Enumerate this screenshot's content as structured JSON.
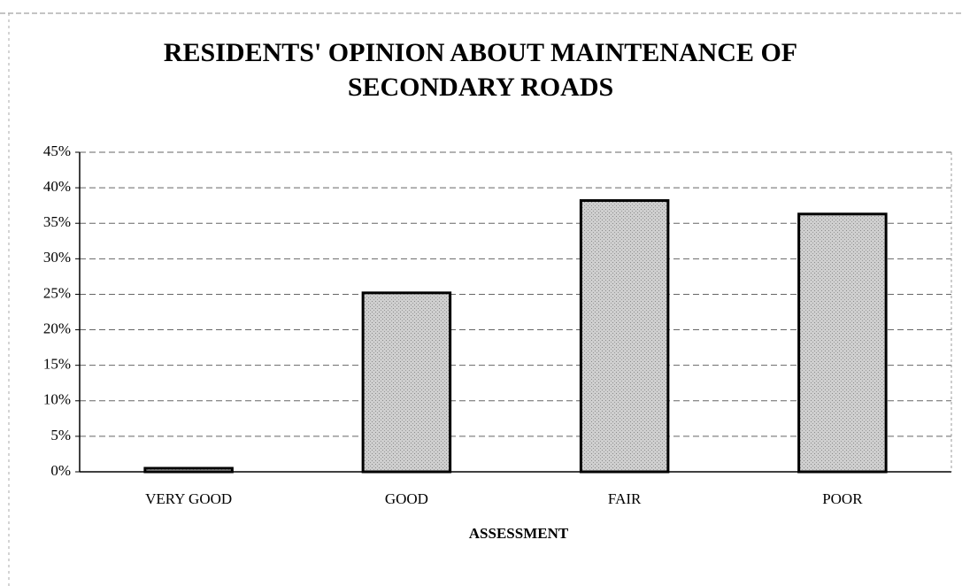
{
  "chart_data": {
    "type": "bar",
    "title": "RESIDENTS' OPINION ABOUT MAINTENANCE OF SECONDARY ROADS",
    "x_label": "ASSESSMENT",
    "categories": [
      "VERY GOOD",
      "GOOD",
      "FAIR",
      "POOR"
    ],
    "values": [
      0.5,
      25.2,
      38.2,
      36.3
    ],
    "color": "#c4c4c4",
    "ylim": [
      0,
      45
    ],
    "yticks": [
      {
        "value": 0,
        "label": "0%"
      },
      {
        "value": 5,
        "label": "5%"
      },
      {
        "value": 10,
        "label": "10%"
      },
      {
        "value": 15,
        "label": "15%"
      },
      {
        "value": 20,
        "label": "20%"
      },
      {
        "value": 25,
        "label": "25%"
      },
      {
        "value": 30,
        "label": "30%"
      },
      {
        "value": 35,
        "label": "35%"
      },
      {
        "value": 40,
        "label": "40%"
      },
      {
        "value": 45,
        "label": "45%"
      }
    ],
    "grid": true
  }
}
